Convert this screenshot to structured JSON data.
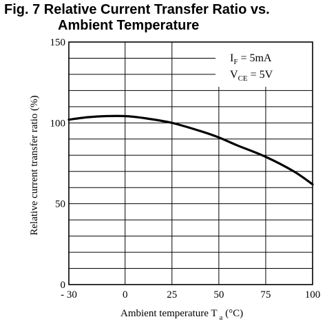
{
  "figure": {
    "title_line1": "Fig. 7 Relative Current Transfer Ratio vs.",
    "title_line2": "Ambient Temperature"
  },
  "conditions": {
    "line1_main": "I",
    "line1_sub": "F",
    "line1_rest": " = 5mA",
    "line2_main": "V",
    "line2_sub": "CE",
    "line2_rest": " = 5V"
  },
  "axes": {
    "ylabel": "Relative current transfer ratio (%)",
    "xlabel_main": "Ambient temperature T",
    "xlabel_sub": "a",
    "xlabel_unit": " (°C)"
  },
  "chart_data": {
    "type": "line",
    "title": "Fig. 7 Relative Current Transfer Ratio vs. Ambient Temperature",
    "xlabel": "Ambient temperature Ta (°C)",
    "ylabel": "Relative current transfer ratio (%)",
    "xlim": [
      -30,
      100
    ],
    "ylim": [
      0,
      150
    ],
    "x_ticks": [
      "- 30",
      "0",
      "25",
      "50",
      "75",
      "100"
    ],
    "y_ticks": [
      "0",
      "50",
      "100",
      "150"
    ],
    "grid": true,
    "x_grid": [
      -30,
      0,
      25,
      50,
      75,
      100
    ],
    "y_grid": [
      0,
      10,
      20,
      30,
      40,
      50,
      60,
      70,
      80,
      90,
      100,
      110,
      120,
      130,
      140,
      150
    ],
    "series": [
      {
        "x": [
          -30,
          -20,
          -10,
          0,
          10,
          25,
          40,
          50,
          60,
          75,
          90,
          100
        ],
        "values": [
          102,
          103.5,
          104.2,
          104.2,
          103,
          100,
          95,
          91,
          86,
          79,
          70,
          62
        ]
      }
    ]
  }
}
